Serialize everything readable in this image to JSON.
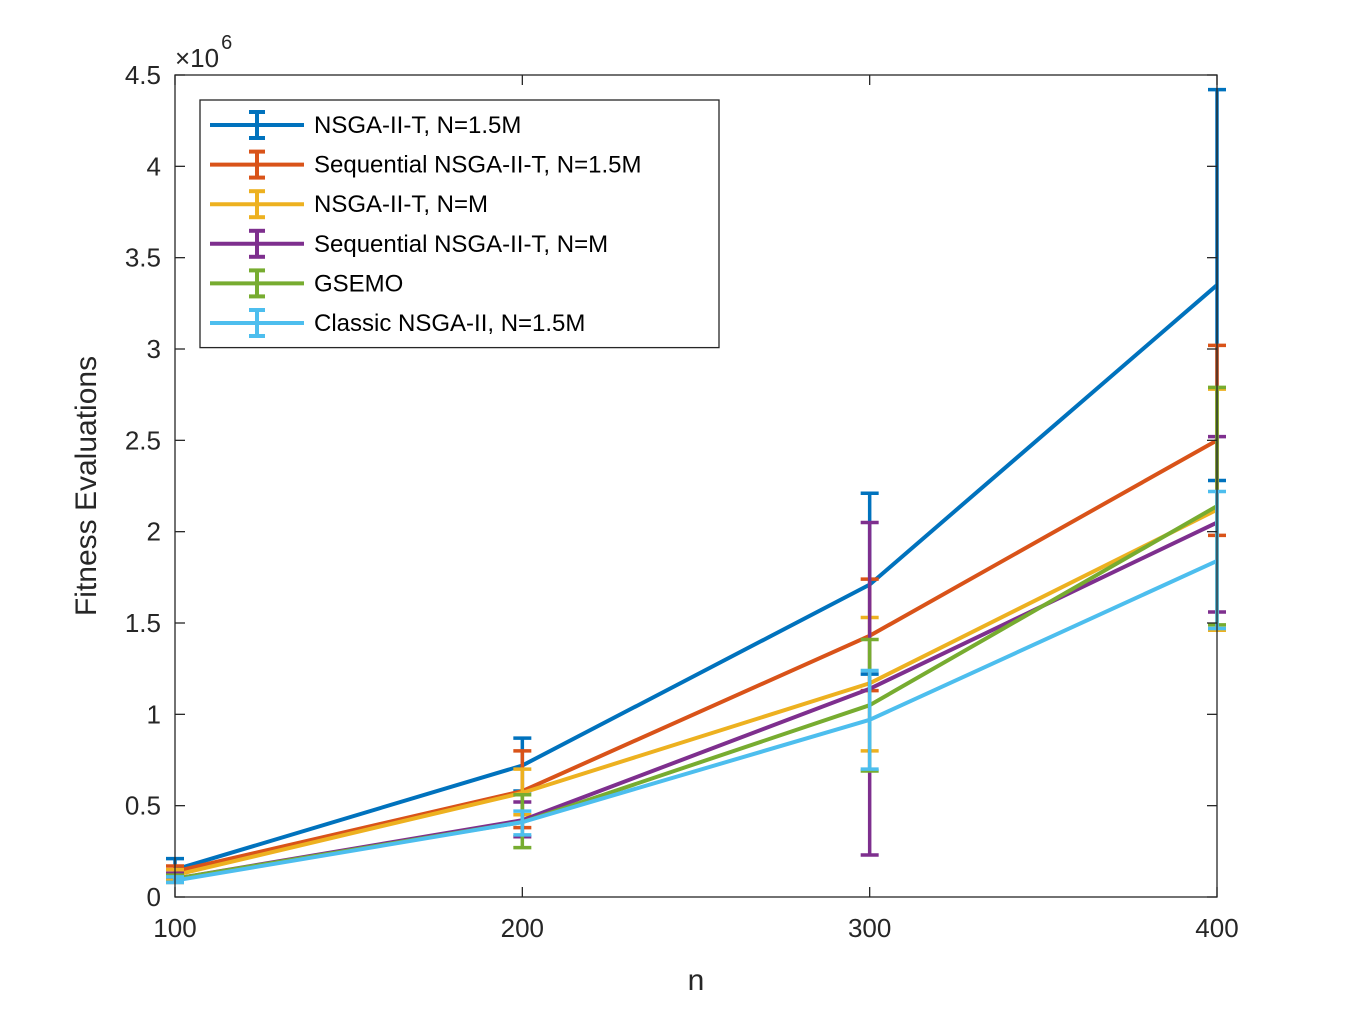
{
  "chart_data": {
    "type": "line",
    "x": [
      100,
      200,
      300,
      400
    ],
    "xlim": [
      100,
      400
    ],
    "ylim": [
      0,
      4.5
    ],
    "y_scale_factor": "×10^6",
    "y_exponent_base": "×10",
    "y_exponent_power": "6",
    "xlabel": "n",
    "ylabel": "Fitness Evaluations",
    "x_ticks": [
      "100",
      "200",
      "300",
      "400"
    ],
    "y_ticks": [
      "0",
      "0.5",
      "1",
      "1.5",
      "2",
      "2.5",
      "3",
      "3.5",
      "4",
      "4.5"
    ],
    "grid": false,
    "legend_position": "top-left",
    "series": [
      {
        "name": "NSGA-II-T, N=1.5M",
        "color": "#0072BD",
        "values": [
          0.15,
          0.72,
          1.71,
          3.35
        ],
        "err_low": [
          0.1,
          0.58,
          1.22,
          2.28
        ],
        "err_high": [
          0.21,
          0.87,
          2.21,
          4.42
        ]
      },
      {
        "name": "Sequential NSGA-II-T, N=1.5M",
        "color": "#D95319",
        "values": [
          0.14,
          0.58,
          1.43,
          2.5
        ],
        "err_low": [
          0.1,
          0.38,
          1.13,
          1.98
        ],
        "err_high": [
          0.17,
          0.8,
          1.74,
          3.02
        ]
      },
      {
        "name": "NSGA-II-T, N=M",
        "color": "#EDB120",
        "values": [
          0.12,
          0.57,
          1.17,
          2.12
        ],
        "err_low": [
          0.09,
          0.45,
          0.8,
          1.46
        ],
        "err_high": [
          0.15,
          0.7,
          1.53,
          2.78
        ]
      },
      {
        "name": "Sequential NSGA-II-T, N=M",
        "color": "#7E2F8E",
        "values": [
          0.1,
          0.42,
          1.14,
          2.05
        ],
        "err_low": [
          0.08,
          0.33,
          0.23,
          1.56
        ],
        "err_high": [
          0.13,
          0.52,
          2.05,
          2.52
        ]
      },
      {
        "name": "GSEMO",
        "color": "#77AC30",
        "values": [
          0.1,
          0.41,
          1.05,
          2.14
        ],
        "err_low": [
          0.08,
          0.27,
          0.69,
          1.49
        ],
        "err_high": [
          0.12,
          0.56,
          1.41,
          2.79
        ]
      },
      {
        "name": "Classic NSGA-II, N=1.5M",
        "color": "#4DBEEE",
        "values": [
          0.09,
          0.41,
          0.97,
          1.84
        ],
        "err_low": [
          0.08,
          0.34,
          0.7,
          1.47
        ],
        "err_high": [
          0.11,
          0.47,
          1.24,
          2.22
        ]
      }
    ]
  }
}
